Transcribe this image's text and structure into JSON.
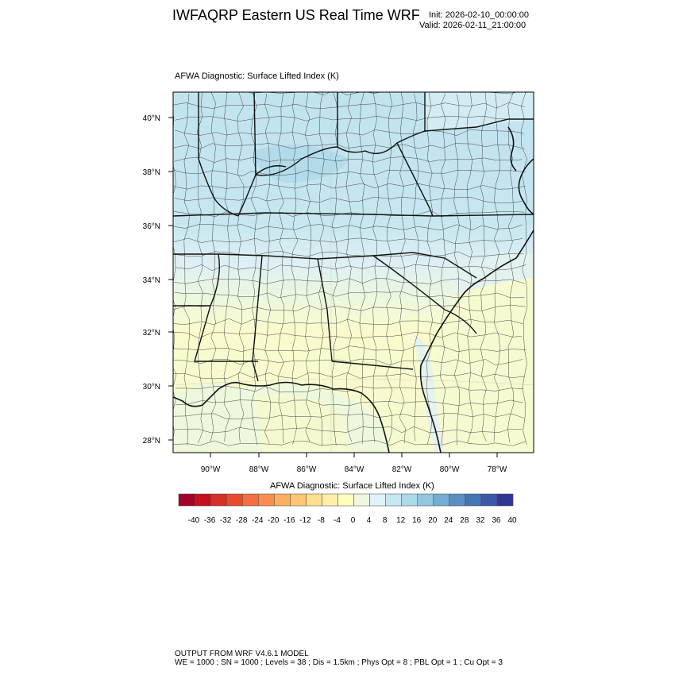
{
  "header": {
    "title": "IWFAQRP Eastern US Real Time WRF",
    "init": "Init: 2026-02-10_00:00:00",
    "valid": "Valid: 2026-02-11_21:00:00"
  },
  "map": {
    "field_title": "AFWA Diagnostic: Surface Lifted Index   (K)",
    "lat_labels": [
      "40°N",
      "38°N",
      "36°N",
      "34°N",
      "32°N",
      "30°N",
      "28°N"
    ],
    "lon_labels": [
      "90°W",
      "88°W",
      "86°W",
      "84°W",
      "82°W",
      "80°W",
      "78°W"
    ]
  },
  "colorbar": {
    "title": "AFWA Diagnostic: Surface Lifted Index  (K)",
    "tick_labels": [
      "-40",
      "-36",
      "-32",
      "-28",
      "-24",
      "-20",
      "-16",
      "-12",
      "-8",
      "-4",
      "0",
      "4",
      "8",
      "12",
      "16",
      "20",
      "24",
      "28",
      "32",
      "36",
      "40"
    ],
    "colors": [
      "#a50026",
      "#c4101f",
      "#d73027",
      "#e44c2e",
      "#f46d43",
      "#f88d52",
      "#fdae61",
      "#fdc575",
      "#fee090",
      "#fef0a8",
      "#ffffbf",
      "#eef8dd",
      "#e0f3f8",
      "#c6e7f0",
      "#abd9e9",
      "#92c5de",
      "#74add1",
      "#5d8fc2",
      "#4575b4",
      "#3d57a7",
      "#313695"
    ]
  },
  "footer": {
    "line1": "OUTPUT FROM WRF V4.6.1 MODEL",
    "line2": "WE = 1000 ; SN = 1000 ; Levels = 38 ; Dis = 1.5km ; Phys Opt = 8 ; PBL Opt = 1 ; Cu Opt = 3"
  }
}
